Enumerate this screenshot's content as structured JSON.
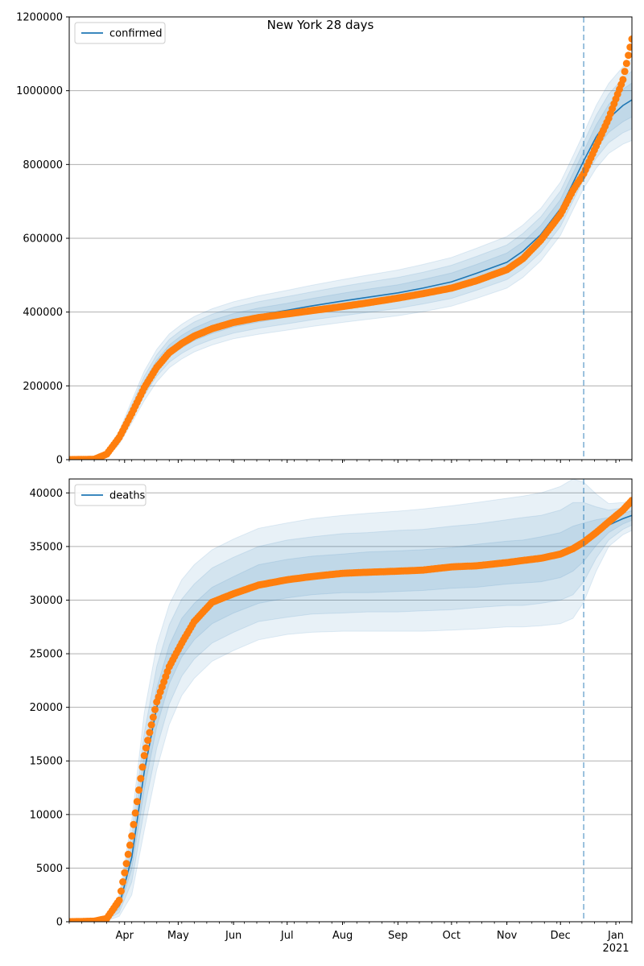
{
  "figure": {
    "title": "New York 28 days"
  },
  "colors": {
    "model_line": "#1f77b4",
    "band": "#1f77b4",
    "observed": "#ff7f0e",
    "grid": "#b0b0b0",
    "cutoff": "#1f77b4"
  },
  "months": [
    "Apr",
    "May",
    "Jun",
    "Jul",
    "Aug",
    "Sep",
    "Oct",
    "Nov",
    "Dec",
    "Jan"
  ],
  "year_label": "2021",
  "chart_data": [
    {
      "type": "line",
      "legend": "confirmed",
      "legend_position": "top-left",
      "grid": "horizontal",
      "x_axis": "date",
      "x_range": [
        "2020-03-01",
        "2021-01-10"
      ],
      "forecast_start": "2020-12-14",
      "ylim": [
        0,
        1200000
      ],
      "yticks": [
        0,
        200000,
        400000,
        600000,
        800000,
        1000000,
        1200000
      ],
      "model": {
        "dates": [
          "2020-03-01",
          "2020-03-15",
          "2020-03-22",
          "2020-03-29",
          "2020-04-05",
          "2020-04-12",
          "2020-04-19",
          "2020-04-26",
          "2020-05-03",
          "2020-05-10",
          "2020-05-20",
          "2020-06-01",
          "2020-06-15",
          "2020-07-01",
          "2020-07-15",
          "2020-08-01",
          "2020-08-15",
          "2020-09-01",
          "2020-09-15",
          "2020-10-01",
          "2020-10-15",
          "2020-11-01",
          "2020-11-10",
          "2020-11-20",
          "2020-12-01",
          "2020-12-08",
          "2020-12-14",
          "2020-12-21",
          "2020-12-28",
          "2021-01-05",
          "2021-01-10"
        ],
        "values": [
          0,
          1000,
          15000,
          60000,
          130000,
          200000,
          255000,
          295000,
          320000,
          340000,
          360000,
          378000,
          392000,
          405000,
          417000,
          430000,
          440000,
          452000,
          465000,
          482000,
          505000,
          535000,
          565000,
          610000,
          680000,
          750000,
          810000,
          875000,
          925000,
          960000,
          975000
        ],
        "bands": [
          {
            "name": "outer",
            "half_width": [
              0,
              3000,
              9000,
              18000,
              30000,
              40000,
              44000,
              46000,
              47000,
              48000,
              49000,
              50000,
              52000,
              54000,
              56000,
              58000,
              60000,
              62000,
              64000,
              66000,
              68000,
              70000,
              71000,
              71000,
              72000,
              73000,
              75000,
              85000,
              95000,
              105000,
              110000
            ]
          },
          {
            "name": "middle",
            "half_width": [
              0,
              2000,
              6000,
              12000,
              20000,
              26000,
              29000,
              31000,
              32000,
              33000,
              34000,
              35000,
              36000,
              37000,
              38000,
              40000,
              41000,
              42000,
              43000,
              45000,
              46000,
              47000,
              48000,
              48000,
              48000,
              49000,
              50000,
              58000,
              66000,
              74000,
              78000
            ]
          },
          {
            "name": "inner",
            "half_width": [
              0,
              1000,
              3000,
              6000,
              10000,
              13000,
              15000,
              16000,
              17000,
              17000,
              18000,
              18000,
              19000,
              19000,
              20000,
              21000,
              22000,
              22000,
              23000,
              24000,
              24000,
              25000,
              25000,
              25000,
              25000,
              26000,
              26000,
              32000,
              38000,
              44000,
              46000
            ]
          }
        ]
      },
      "observed": {
        "dates": [
          "2020-03-01",
          "2020-03-15",
          "2020-03-22",
          "2020-03-29",
          "2020-04-05",
          "2020-04-12",
          "2020-04-19",
          "2020-04-26",
          "2020-05-03",
          "2020-05-10",
          "2020-05-20",
          "2020-06-01",
          "2020-06-15",
          "2020-07-01",
          "2020-07-15",
          "2020-08-01",
          "2020-08-15",
          "2020-09-01",
          "2020-09-15",
          "2020-10-01",
          "2020-10-15",
          "2020-11-01",
          "2020-11-10",
          "2020-11-20",
          "2020-12-01",
          "2020-12-08",
          "2020-12-14",
          "2020-12-21",
          "2020-12-28",
          "2021-01-05",
          "2021-01-10"
        ],
        "values": [
          0,
          1000,
          15000,
          60000,
          125000,
          195000,
          250000,
          290000,
          315000,
          335000,
          355000,
          372000,
          385000,
          395000,
          404000,
          415000,
          425000,
          438000,
          450000,
          465000,
          485000,
          515000,
          545000,
          595000,
          665000,
          730000,
          775000,
          850000,
          925000,
          1030000,
          1140000
        ]
      }
    },
    {
      "type": "line",
      "legend": "deaths",
      "legend_position": "top-left",
      "grid": "horizontal",
      "x_axis": "date",
      "x_range": [
        "2020-03-01",
        "2021-01-10"
      ],
      "forecast_start": "2020-12-14",
      "ylim": [
        0,
        41300
      ],
      "yticks": [
        0,
        5000,
        10000,
        15000,
        20000,
        25000,
        30000,
        35000,
        40000
      ],
      "model": {
        "dates": [
          "2020-03-01",
          "2020-03-15",
          "2020-03-22",
          "2020-03-29",
          "2020-04-05",
          "2020-04-12",
          "2020-04-19",
          "2020-04-26",
          "2020-05-03",
          "2020-05-10",
          "2020-05-20",
          "2020-06-01",
          "2020-06-15",
          "2020-07-01",
          "2020-07-15",
          "2020-08-01",
          "2020-08-15",
          "2020-09-01",
          "2020-09-15",
          "2020-10-01",
          "2020-10-15",
          "2020-11-01",
          "2020-11-10",
          "2020-11-20",
          "2020-12-01",
          "2020-12-08",
          "2020-12-14",
          "2020-12-21",
          "2020-12-28",
          "2021-01-05",
          "2021-01-10"
        ],
        "values": [
          0,
          50,
          300,
          1500,
          6000,
          14000,
          20000,
          24000,
          26500,
          28000,
          29500,
          30500,
          31500,
          32000,
          32300,
          32500,
          32600,
          32700,
          32800,
          33000,
          33200,
          33500,
          33600,
          33800,
          34200,
          34800,
          35400,
          36300,
          37000,
          37600,
          37900
        ],
        "bands": [
          {
            "name": "outer",
            "half_width": [
              0,
              30,
              200,
              1000,
              3500,
              5500,
              5800,
              5600,
              5400,
              5300,
              5200,
              5200,
              5200,
              5200,
              5300,
              5400,
              5500,
              5600,
              5700,
              5800,
              5900,
              6000,
              6100,
              6200,
              6400,
              6500,
              5600,
              3600,
              2000,
              1500,
              1400
            ]
          },
          {
            "name": "middle",
            "half_width": [
              0,
              20,
              120,
              650,
              2300,
              3600,
              3800,
              3700,
              3600,
              3500,
              3500,
              3500,
              3500,
              3600,
              3600,
              3700,
              3700,
              3800,
              3800,
              3900,
              3900,
              4000,
              4100,
              4100,
              4200,
              4300,
              3700,
              2400,
              1400,
              1000,
              900
            ]
          },
          {
            "name": "inner",
            "half_width": [
              0,
              10,
              60,
              300,
              1100,
              1700,
              1800,
              1800,
              1800,
              1700,
              1700,
              1700,
              1800,
              1800,
              1800,
              1800,
              1900,
              1900,
              1900,
              1900,
              2000,
              2000,
              2000,
              2100,
              2100,
              2100,
              1800,
              1200,
              700,
              500,
              450
            ]
          }
        ]
      },
      "observed": {
        "dates": [
          "2020-03-01",
          "2020-03-15",
          "2020-03-22",
          "2020-03-29",
          "2020-04-05",
          "2020-04-12",
          "2020-04-19",
          "2020-04-26",
          "2020-05-03",
          "2020-05-10",
          "2020-05-20",
          "2020-06-01",
          "2020-06-15",
          "2020-07-01",
          "2020-07-15",
          "2020-08-01",
          "2020-08-15",
          "2020-09-01",
          "2020-09-15",
          "2020-10-01",
          "2020-10-15",
          "2020-11-01",
          "2020-11-10",
          "2020-11-20",
          "2020-12-01",
          "2020-12-08",
          "2020-12-14",
          "2020-12-21",
          "2020-12-28",
          "2021-01-05",
          "2021-01-10"
        ],
        "values": [
          0,
          50,
          300,
          2000,
          8000,
          15500,
          20500,
          23800,
          26000,
          28000,
          29800,
          30600,
          31400,
          31900,
          32200,
          32500,
          32600,
          32700,
          32800,
          33100,
          33200,
          33500,
          33700,
          33900,
          34300,
          34800,
          35400,
          36300,
          37300,
          38400,
          39300
        ]
      }
    }
  ]
}
